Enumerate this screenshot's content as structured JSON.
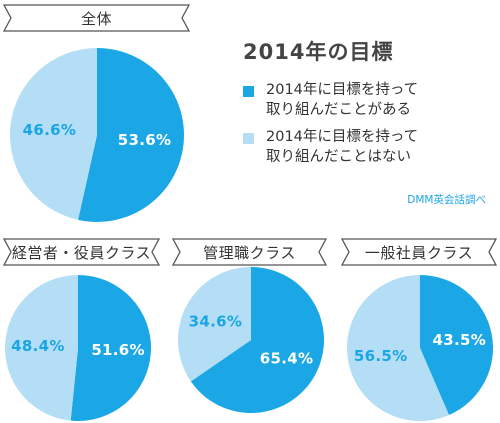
{
  "colors": {
    "primary": "#1ba7e6",
    "secondary": "#b3def6"
  },
  "legend": {
    "title": "2014年の目標",
    "items": [
      {
        "text1": "2014年に目標を持って",
        "text2": "取り組んだことがある",
        "color": "#1ba7e6"
      },
      {
        "text1": "2014年に目標を持って",
        "text2": "取り組んだことはない",
        "color": "#b3def6"
      }
    ]
  },
  "source": "DMM英会話調べ",
  "chart_data": [
    {
      "type": "pie",
      "title": "全体",
      "categories": [
        "2014年に目標を持って取り組んだことがある",
        "2014年に目標を持って取り組んだことはない"
      ],
      "values": [
        53.6,
        46.6
      ],
      "labels": [
        "53.6%",
        "46.6%"
      ]
    },
    {
      "type": "pie",
      "title": "経営者・役員クラス",
      "categories": [
        "2014年に目標を持って取り組んだことがある",
        "2014年に目標を持って取り組んだことはない"
      ],
      "values": [
        51.6,
        48.4
      ],
      "labels": [
        "51.6%",
        "48.4%"
      ]
    },
    {
      "type": "pie",
      "title": "管理職クラス",
      "categories": [
        "2014年に目標を持って取り組んだことがある",
        "2014年に目標を持って取り組んだことはない"
      ],
      "values": [
        65.4,
        34.6
      ],
      "labels": [
        "65.4%",
        "34.6%"
      ]
    },
    {
      "type": "pie",
      "title": "一般社員クラス",
      "categories": [
        "2014年に目標を持って取り組んだことがある",
        "2014年に目標を持って取り組んだことはない"
      ],
      "values": [
        43.5,
        56.5
      ],
      "labels": [
        "43.5%",
        "56.5%"
      ]
    }
  ]
}
